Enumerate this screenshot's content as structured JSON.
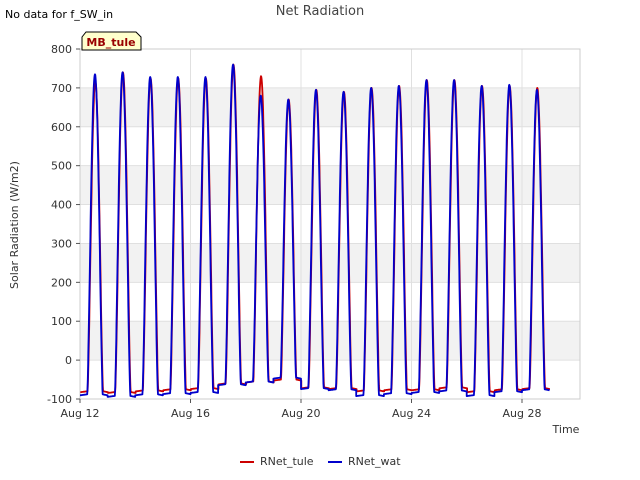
{
  "chart_data": {
    "type": "line",
    "title": "Net Radiation",
    "corner_note": "No data for f_SW_in",
    "site_label": "MB_tule",
    "xlabel": "Time",
    "ylabel": "Solar Radiation (W/m2)",
    "ylim": [
      -100,
      800
    ],
    "xlim_days": [
      12,
      30.1
    ],
    "yticks": [
      -100,
      0,
      100,
      200,
      300,
      400,
      500,
      600,
      700,
      800
    ],
    "xticks": [
      {
        "label": "Aug 12",
        "day": 12
      },
      {
        "label": "Aug 16",
        "day": 16
      },
      {
        "label": "Aug 20",
        "day": 20
      },
      {
        "label": "Aug 24",
        "day": 24
      },
      {
        "label": "Aug 28",
        "day": 28
      }
    ],
    "grid": true,
    "legend_position": "bottom-center",
    "series": [
      {
        "name": "RNet_tule",
        "color": "#cc0000",
        "daily_peaks": [
          715,
          740,
          725,
          725,
          725,
          760,
          730,
          670,
          695,
          690,
          700,
          705,
          720,
          720,
          705,
          705,
          700
        ],
        "night_values": [
          -80,
          -82,
          -78,
          -75,
          -72,
          -60,
          -55,
          -50,
          -70,
          -72,
          -78,
          -75,
          -75,
          -70,
          -80,
          -75,
          -72
        ]
      },
      {
        "name": "RNet_wat",
        "color": "#0000cc",
        "daily_peaks": [
          735,
          740,
          728,
          728,
          728,
          760,
          680,
          670,
          695,
          690,
          700,
          705,
          720,
          720,
          705,
          708,
          695
        ],
        "night_values": [
          -88,
          -92,
          -88,
          -85,
          -82,
          -62,
          -55,
          -45,
          -72,
          -75,
          -90,
          -85,
          -82,
          -78,
          -90,
          -80,
          -75
        ]
      }
    ]
  }
}
